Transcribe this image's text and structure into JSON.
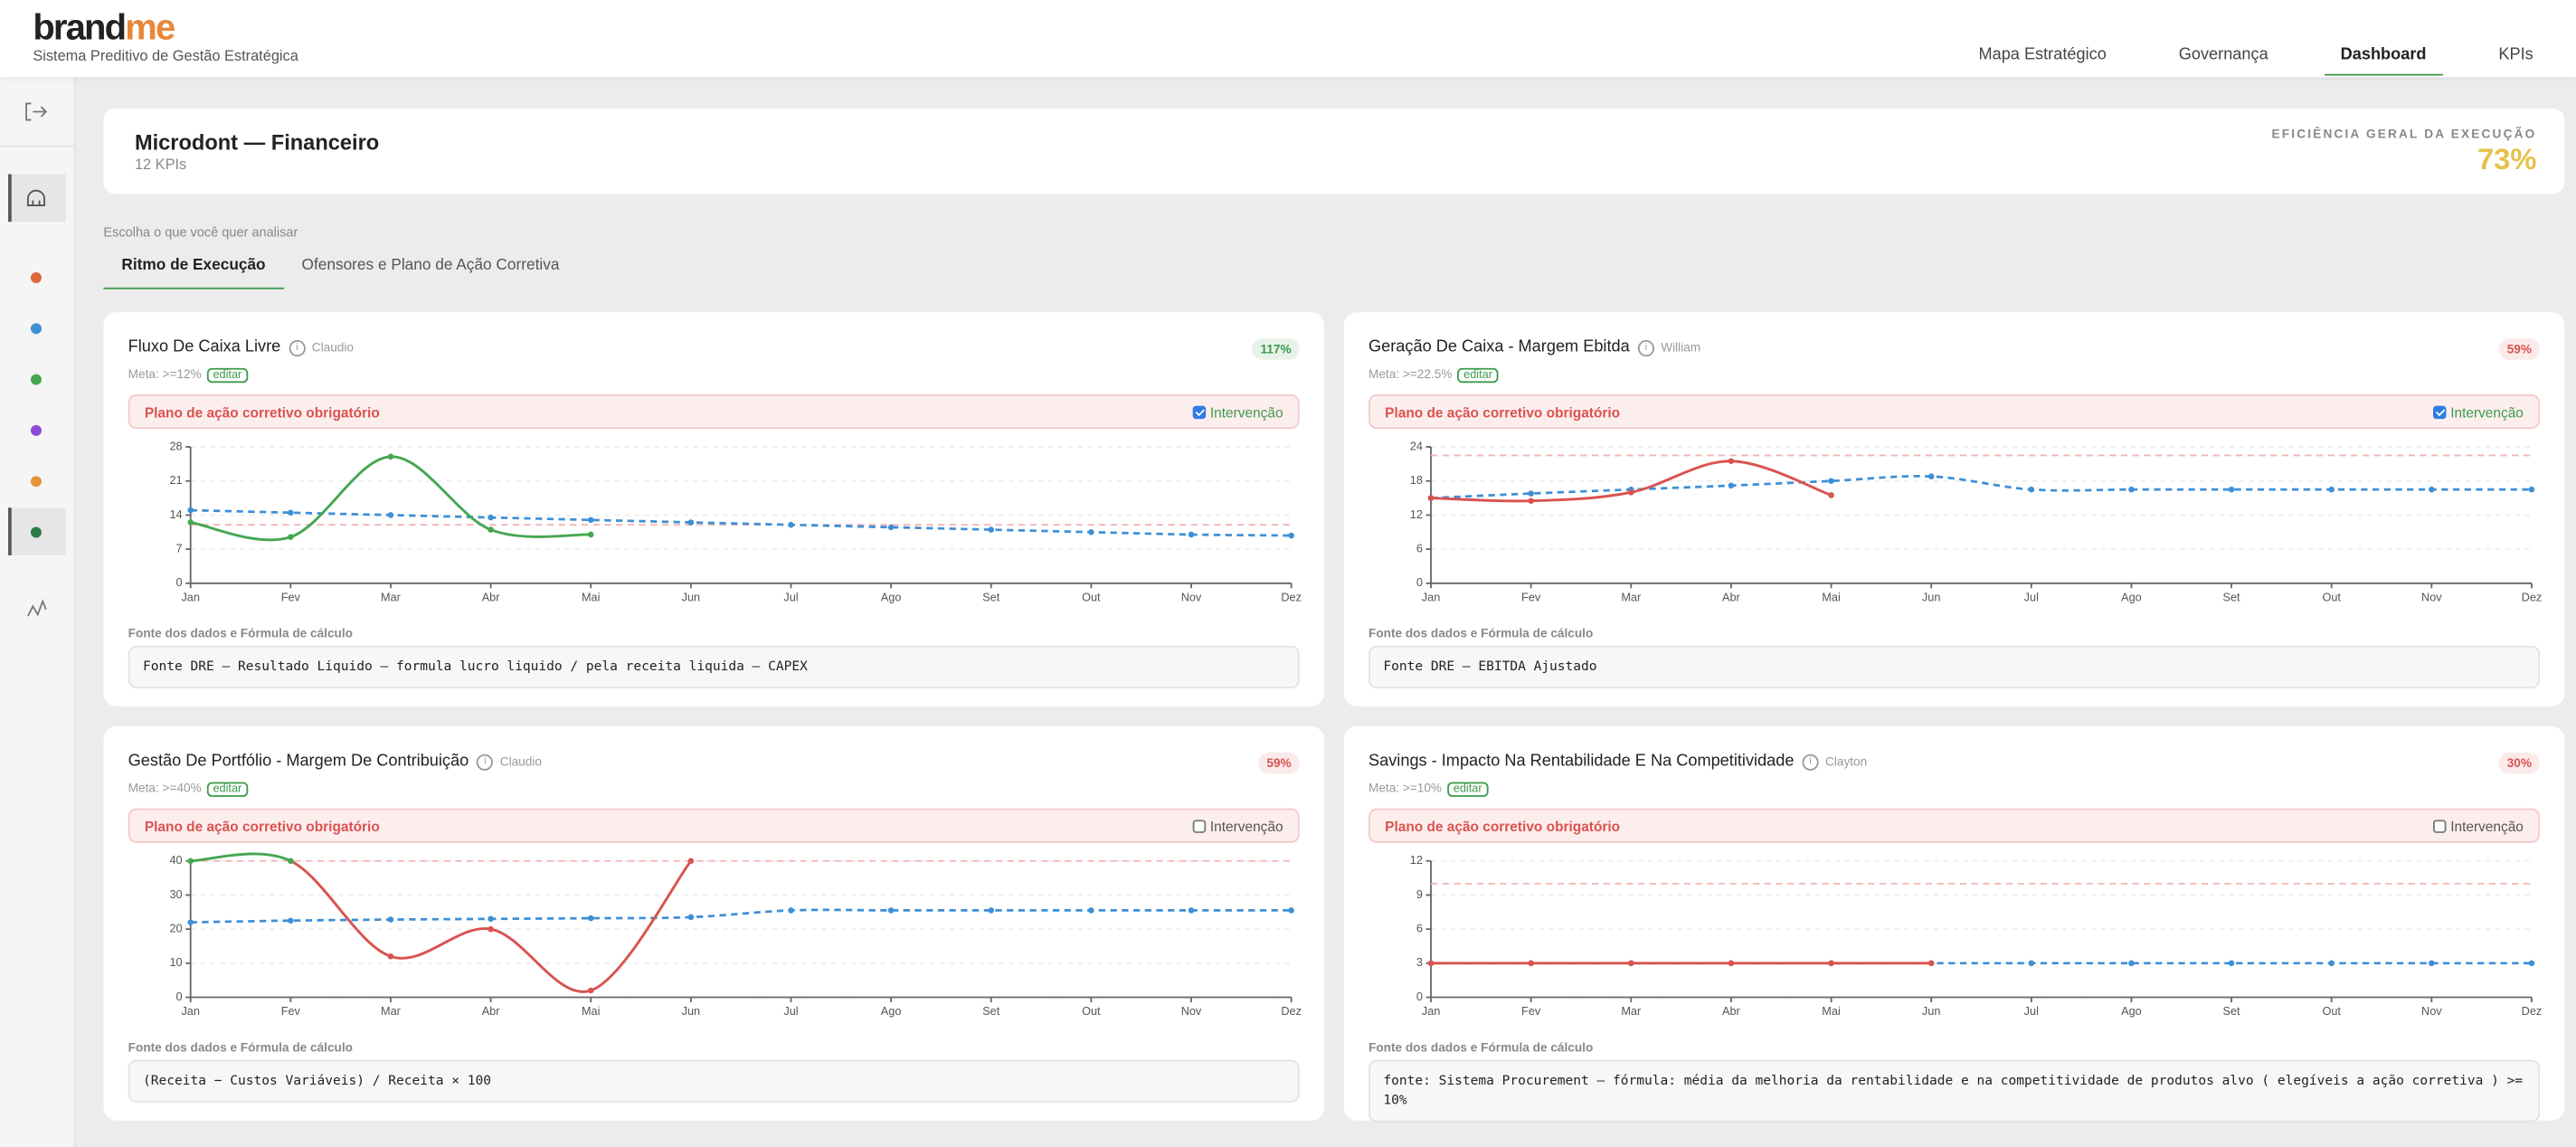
{
  "header": {
    "logo": [
      "brand",
      "me"
    ],
    "subtitle": "Sistema Preditivo de Gestão Estratégica",
    "nav": [
      "Mapa Estratégico",
      "Governança",
      "Dashboard",
      "KPIs"
    ],
    "active_nav": 2
  },
  "summary": {
    "title": "Microdont — Financeiro",
    "count": "12 KPIs",
    "efficiency_label": "EFICIÊNCIA GERAL DA EXECUÇÃO",
    "efficiency": "73%"
  },
  "tabs": {
    "prompt": "Escolha o que você quer analisar",
    "items": [
      "Ritmo de Execução",
      "Ofensores e Plano de Ação Corretiva"
    ],
    "active": 0
  },
  "kpis": [
    {
      "title": "Fluxo De Caixa Livre",
      "owner": "Claudio",
      "badge": "117%",
      "badge_color": "#3c9a4a",
      "meta": "Meta: >=12%",
      "edit": "editar",
      "alert": "Plano de ação corretivo obrigatório",
      "intervention": "Intervenção",
      "checked": true,
      "source_label": "Fonte dos dados e Fórmula de cálculo",
      "source": "Fonte DRE – Resultado Liquido – formula lucro liquido / pela receita liquida – CAPEX",
      "chart": {
        "type": "line",
        "categories": [
          "Jan",
          "Fev",
          "Mar",
          "Abr",
          "Mai",
          "Jun",
          "Jul",
          "Ago",
          "Set",
          "Out",
          "Nov",
          "Dez"
        ],
        "ylim": [
          0,
          28
        ],
        "yticks": [
          0,
          7,
          14,
          21,
          28
        ],
        "target": 12,
        "target_color": "#f4b4b4",
        "series": [
          {
            "color": "#3d8fd6",
            "dashed": true,
            "values": [
              15,
              14.5,
              14,
              13.5,
              13,
              12.5,
              12,
              11.5,
              11,
              10.5,
              10,
              9.8
            ]
          },
          {
            "point_colors": [
              "#46a651",
              "#46a651",
              "#46a651",
              "#46a651",
              "#46a651",
              null,
              null,
              null,
              null,
              null,
              null,
              null
            ],
            "values": [
              12.5,
              9.5,
              26,
              11,
              10,
              null,
              null,
              null,
              null,
              null,
              null,
              null
            ]
          }
        ]
      }
    },
    {
      "title": "Geração De Caixa - Margem Ebitda",
      "owner": "William",
      "badge": "59%",
      "badge_color": "#d9534f",
      "meta": "Meta: >=22.5%",
      "edit": "editar",
      "alert": "Plano de ação corretivo obrigatório",
      "intervention": "Intervenção",
      "checked": true,
      "source_label": "Fonte dos dados e Fórmula de cálculo",
      "source": "Fonte DRE – EBITDA Ajustado",
      "chart": {
        "type": "line",
        "categories": [
          "Jan",
          "Fev",
          "Mar",
          "Abr",
          "Mai",
          "Jun",
          "Jul",
          "Ago",
          "Set",
          "Out",
          "Nov",
          "Dez"
        ],
        "ylim": [
          0,
          24
        ],
        "yticks": [
          0,
          6,
          12,
          18,
          24
        ],
        "target": 22.5,
        "target_color": "#f4b4b4",
        "series": [
          {
            "color": "#3d8fd6",
            "dashed": true,
            "values": [
              15,
              15.8,
              16.5,
              17.2,
              18,
              18.8,
              16.5,
              16.5,
              16.5,
              16.5,
              16.5,
              16.5
            ]
          },
          {
            "point_colors": [
              "#d9534f",
              "#d9534f",
              "#d9534f",
              "#d9534f",
              "#d9534f",
              null,
              null,
              null,
              null,
              null,
              null,
              null
            ],
            "values": [
              15,
              14.5,
              16,
              21.5,
              15.5,
              null,
              null,
              null,
              null,
              null,
              null,
              null
            ]
          }
        ]
      }
    },
    {
      "title": "Gestão De Portfólio - Margem De Contribuição",
      "owner": "Claudio",
      "badge": "59%",
      "badge_color": "#d9534f",
      "meta": "Meta: >=40%",
      "edit": "editar",
      "alert": "Plano de ação corretivo obrigatório",
      "intervention": "Intervenção",
      "checked": false,
      "source_label": "Fonte dos dados e Fórmula de cálculo",
      "source": "(Receita − Custos Variáveis) / Receita × 100",
      "chart": {
        "type": "line",
        "categories": [
          "Jan",
          "Fev",
          "Mar",
          "Abr",
          "Mai",
          "Jun",
          "Jul",
          "Ago",
          "Set",
          "Out",
          "Nov",
          "Dez"
        ],
        "ylim": [
          0,
          40
        ],
        "yticks": [
          0,
          10,
          20,
          30,
          40
        ],
        "target": 40,
        "target_color": "#f4b4b4",
        "series": [
          {
            "color": "#3d8fd6",
            "dashed": true,
            "values": [
              22,
              22.5,
              22.8,
              23,
              23.2,
              23.5,
              25.5,
              25.5,
              25.5,
              25.5,
              25.5,
              25.5
            ]
          },
          {
            "point_colors": [
              "#46a651",
              "#46a651",
              "#d9534f",
              "#d9534f",
              "#d9534f",
              "#d9534f",
              null,
              null,
              null,
              null,
              null,
              null
            ],
            "values": [
              40,
              40,
              12,
              20,
              2,
              40,
              null,
              null,
              null,
              null,
              null,
              null
            ]
          }
        ]
      }
    },
    {
      "title": "Savings - Impacto Na Rentabilidade E Na Competitividade",
      "owner": "Clayton",
      "badge": "30%",
      "badge_color": "#d9534f",
      "meta": "Meta: >=10%",
      "edit": "editar",
      "alert": "Plano de ação corretivo obrigatório",
      "intervention": "Intervenção",
      "checked": false,
      "source_label": "Fonte dos dados e Fórmula de cálculo",
      "source": "fonte: Sistema Procurement – fórmula: média da melhoria da rentabilidade e na competitividade de produtos alvo ( elegíveis a ação corretiva ) >= 10%",
      "chart": {
        "type": "line",
        "categories": [
          "Jan",
          "Fev",
          "Mar",
          "Abr",
          "Mai",
          "Jun",
          "Jul",
          "Ago",
          "Set",
          "Out",
          "Nov",
          "Dez"
        ],
        "ylim": [
          0,
          12
        ],
        "yticks": [
          0,
          3,
          6,
          9,
          12
        ],
        "target": 10,
        "target_color": "#f4b4b4",
        "series": [
          {
            "color": "#3d8fd6",
            "dashed": true,
            "values": [
              3,
              3,
              3,
              3,
              3,
              3,
              3,
              3,
              3,
              3,
              3,
              3
            ]
          },
          {
            "point_colors": [
              "#d9534f",
              "#d9534f",
              "#d9534f",
              "#d9534f",
              "#d9534f",
              "#d9534f",
              null,
              null,
              null,
              null,
              null,
              null
            ],
            "values": [
              3,
              3,
              3,
              3,
              3,
              3,
              null,
              null,
              null,
              null,
              null,
              null
            ]
          }
        ]
      }
    }
  ]
}
